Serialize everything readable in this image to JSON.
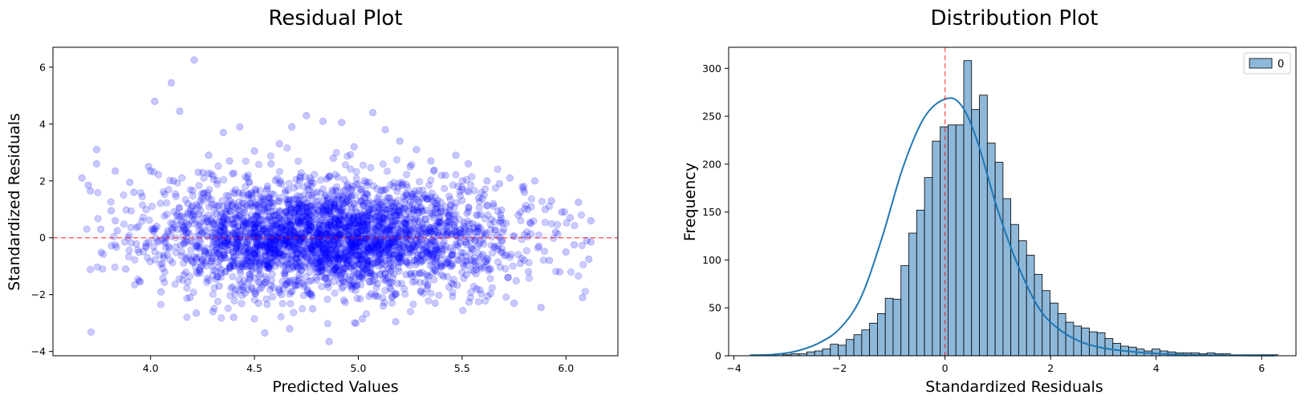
{
  "chart_data": [
    {
      "type": "scatter",
      "title": "Residual Plot",
      "xlabel": "Predicted Values",
      "ylabel": "Standardized Residuals",
      "xlim": [
        3.53,
        6.25
      ],
      "ylim": [
        -4.15,
        6.7
      ],
      "xticks": [
        4.0,
        4.5,
        5.0,
        5.5,
        6.0
      ],
      "yticks": [
        -4,
        -2,
        0,
        2,
        4,
        6
      ],
      "xtick_labels": [
        "4.0",
        "4.5",
        "5.0",
        "5.5",
        "6.0"
      ],
      "ytick_labels": [
        "−4",
        "−2",
        "0",
        "2",
        "4",
        "6"
      ],
      "point_color": "#0000ff",
      "reference_line": {
        "y": 0,
        "color": "#ff0000",
        "style": "dashed"
      },
      "grid": false,
      "points": [
        [
          3.67,
          2.1
        ],
        [
          3.7,
          1.85
        ],
        [
          3.71,
          1.65
        ],
        [
          3.74,
          3.1
        ],
        [
          3.74,
          2.6
        ],
        [
          3.76,
          0.3
        ],
        [
          3.81,
          0.95
        ],
        [
          3.83,
          2.35
        ],
        [
          3.83,
          0.6
        ],
        [
          3.84,
          0.25
        ],
        [
          3.88,
          -1.1
        ],
        [
          3.9,
          1.95
        ],
        [
          3.92,
          1.6
        ],
        [
          3.95,
          -1.55
        ],
        [
          3.96,
          1.45
        ],
        [
          3.98,
          -0.2
        ],
        [
          3.99,
          2.5
        ],
        [
          4.0,
          2.35
        ],
        [
          4.02,
          4.8
        ],
        [
          4.03,
          0.4
        ],
        [
          4.05,
          -1.9
        ],
        [
          4.07,
          0.0
        ],
        [
          4.08,
          -0.6
        ],
        [
          4.1,
          5.45
        ],
        [
          4.11,
          2.0
        ],
        [
          4.13,
          0.3
        ],
        [
          4.14,
          4.45
        ],
        [
          4.16,
          -1.3
        ],
        [
          4.18,
          1.2
        ],
        [
          4.19,
          -2.1
        ],
        [
          4.21,
          6.25
        ],
        [
          4.22,
          -2.65
        ],
        [
          4.23,
          2.3
        ],
        [
          4.25,
          -0.8
        ],
        [
          4.27,
          0.55
        ],
        [
          4.28,
          2.9
        ],
        [
          4.3,
          -2.6
        ],
        [
          4.32,
          1.1
        ],
        [
          4.33,
          -1.7
        ],
        [
          4.35,
          3.7
        ],
        [
          4.36,
          -0.3
        ],
        [
          4.38,
          2.7
        ],
        [
          4.4,
          -2.8
        ],
        [
          4.41,
          0.8
        ],
        [
          4.43,
          3.9
        ],
        [
          4.45,
          -1.5
        ],
        [
          4.47,
          2.2
        ],
        [
          4.48,
          -0.5
        ],
        [
          4.5,
          3.05
        ],
        [
          4.52,
          -2.3
        ],
        [
          4.53,
          1.4
        ],
        [
          4.55,
          -3.35
        ],
        [
          4.56,
          0.2
        ],
        [
          4.58,
          2.6
        ],
        [
          4.6,
          -1.0
        ],
        [
          4.62,
          3.3
        ],
        [
          4.63,
          -2.0
        ],
        [
          4.65,
          0.9
        ],
        [
          4.67,
          -3.2
        ],
        [
          4.68,
          3.9
        ],
        [
          4.7,
          -0.7
        ],
        [
          4.72,
          2.1
        ],
        [
          4.73,
          -1.6
        ],
        [
          4.75,
          4.3
        ],
        [
          4.77,
          0.4
        ],
        [
          4.78,
          -2.5
        ],
        [
          4.8,
          1.6
        ],
        [
          4.82,
          -1.2
        ],
        [
          4.83,
          4.1
        ],
        [
          4.85,
          0.1
        ],
        [
          4.86,
          -3.65
        ],
        [
          4.88,
          2.8
        ],
        [
          4.9,
          -0.9
        ],
        [
          4.92,
          4.05
        ],
        [
          4.93,
          -2.2
        ],
        [
          4.95,
          1.3
        ],
        [
          4.97,
          -1.8
        ],
        [
          4.98,
          3.2
        ],
        [
          5.0,
          0.6
        ],
        [
          5.02,
          -2.85
        ],
        [
          5.03,
          2.0
        ],
        [
          5.05,
          -0.4
        ],
        [
          5.07,
          4.4
        ],
        [
          5.08,
          -1.5
        ],
        [
          5.1,
          1.0
        ],
        [
          5.12,
          -2.4
        ],
        [
          5.13,
          3.8
        ],
        [
          5.15,
          -0.2
        ],
        [
          5.17,
          1.8
        ],
        [
          5.18,
          -2.95
        ],
        [
          5.2,
          3.4
        ],
        [
          5.22,
          0.3
        ],
        [
          5.23,
          -1.3
        ],
        [
          5.25,
          2.5
        ],
        [
          5.27,
          -0.8
        ],
        [
          5.28,
          3.1
        ],
        [
          5.3,
          -1.9
        ],
        [
          5.32,
          1.5
        ],
        [
          5.33,
          -0.5
        ],
        [
          5.35,
          2.7
        ],
        [
          5.37,
          -2.3
        ],
        [
          5.38,
          1.1
        ],
        [
          5.4,
          -1.0
        ],
        [
          5.42,
          2.2
        ],
        [
          5.43,
          0.2
        ],
        [
          5.45,
          -1.6
        ],
        [
          5.47,
          2.9
        ],
        [
          5.48,
          -0.3
        ],
        [
          5.5,
          1.7
        ],
        [
          5.52,
          -1.3
        ],
        [
          5.53,
          2.6
        ],
        [
          5.55,
          0.5
        ],
        [
          5.57,
          -1.8
        ],
        [
          5.58,
          1.4
        ],
        [
          5.6,
          -0.6
        ],
        [
          5.62,
          2.0
        ],
        [
          5.63,
          -1.1
        ],
        [
          5.65,
          1.2
        ],
        [
          5.67,
          -0.4
        ],
        [
          5.68,
          1.9
        ],
        [
          5.7,
          0.3
        ],
        [
          5.72,
          -1.4
        ],
        [
          5.73,
          2.1
        ],
        [
          5.75,
          -2.3
        ],
        [
          5.77,
          0.8
        ],
        [
          5.78,
          -0.9
        ],
        [
          5.8,
          1.6
        ],
        [
          5.82,
          -1.2
        ],
        [
          5.83,
          0.5
        ],
        [
          5.85,
          2.0
        ],
        [
          5.87,
          -0.3
        ],
        [
          5.88,
          -2.45
        ],
        [
          5.9,
          1.0
        ],
        [
          5.92,
          -0.8
        ],
        [
          5.93,
          1.3
        ],
        [
          5.95,
          0.2
        ],
        [
          5.97,
          -1.2
        ],
        [
          5.98,
          0.9
        ],
        [
          6.0,
          -0.5
        ],
        [
          6.02,
          0.7
        ],
        [
          6.04,
          -0.25
        ],
        [
          6.06,
          1.25
        ],
        [
          6.08,
          -2.1
        ],
        [
          6.1,
          -0.1
        ],
        [
          6.11,
          -0.75
        ],
        [
          6.12,
          0.6
        ],
        [
          6.12,
          -0.15
        ]
      ]
    },
    {
      "type": "bar",
      "title": "Distribution Plot",
      "xlabel": "Standardized Residuals",
      "ylabel": "Frequency",
      "xlim": [
        -4.1,
        6.65
      ],
      "ylim": [
        0,
        322
      ],
      "xticks": [
        -4,
        -2,
        0,
        2,
        4,
        6
      ],
      "yticks": [
        0,
        50,
        100,
        150,
        200,
        250,
        300
      ],
      "xtick_labels": [
        "−4",
        "−2",
        "0",
        "2",
        "4",
        "6"
      ],
      "ytick_labels": [
        "0",
        "50",
        "100",
        "150",
        "200",
        "250",
        "300"
      ],
      "bin_start": -3.66,
      "bin_width": 0.1487,
      "counts": [
        1,
        1,
        1,
        2,
        1,
        2,
        2,
        4,
        5,
        7,
        12,
        11,
        17,
        22,
        27,
        34,
        44,
        60,
        59,
        94,
        128,
        152,
        186,
        224,
        239,
        241,
        241,
        308,
        257,
        272,
        222,
        202,
        164,
        137,
        120,
        105,
        85,
        68,
        55,
        44,
        35,
        31,
        29,
        25,
        24,
        18,
        13,
        10,
        9,
        7,
        5,
        7,
        5,
        4,
        3,
        3,
        3,
        2,
        3,
        2,
        2,
        1,
        1,
        1,
        1,
        1,
        1
      ],
      "kde": [
        [
          -3.7,
          0.5
        ],
        [
          -3.2,
          1.5
        ],
        [
          -2.8,
          5
        ],
        [
          -2.4,
          13
        ],
        [
          -2.0,
          28
        ],
        [
          -1.6,
          60
        ],
        [
          -1.2,
          122
        ],
        [
          -0.8,
          196
        ],
        [
          -0.4,
          248
        ],
        [
          0.0,
          268
        ],
        [
          0.3,
          262
        ],
        [
          0.6,
          226
        ],
        [
          1.0,
          152
        ],
        [
          1.4,
          92
        ],
        [
          1.8,
          48
        ],
        [
          2.2,
          26
        ],
        [
          2.6,
          14
        ],
        [
          3.0,
          8
        ],
        [
          3.4,
          5
        ],
        [
          3.8,
          3
        ],
        [
          4.3,
          1.5
        ],
        [
          5.0,
          0.7
        ],
        [
          5.6,
          0.3
        ],
        [
          6.25,
          0.1
        ]
      ],
      "bar_color": "#8db8da",
      "line_color": "#1f77b4",
      "reference_line": {
        "x": 0,
        "color": "#ff0000",
        "style": "dashed"
      },
      "legend": {
        "position": "top-right",
        "entries": [
          "0"
        ]
      },
      "grid": false
    }
  ]
}
